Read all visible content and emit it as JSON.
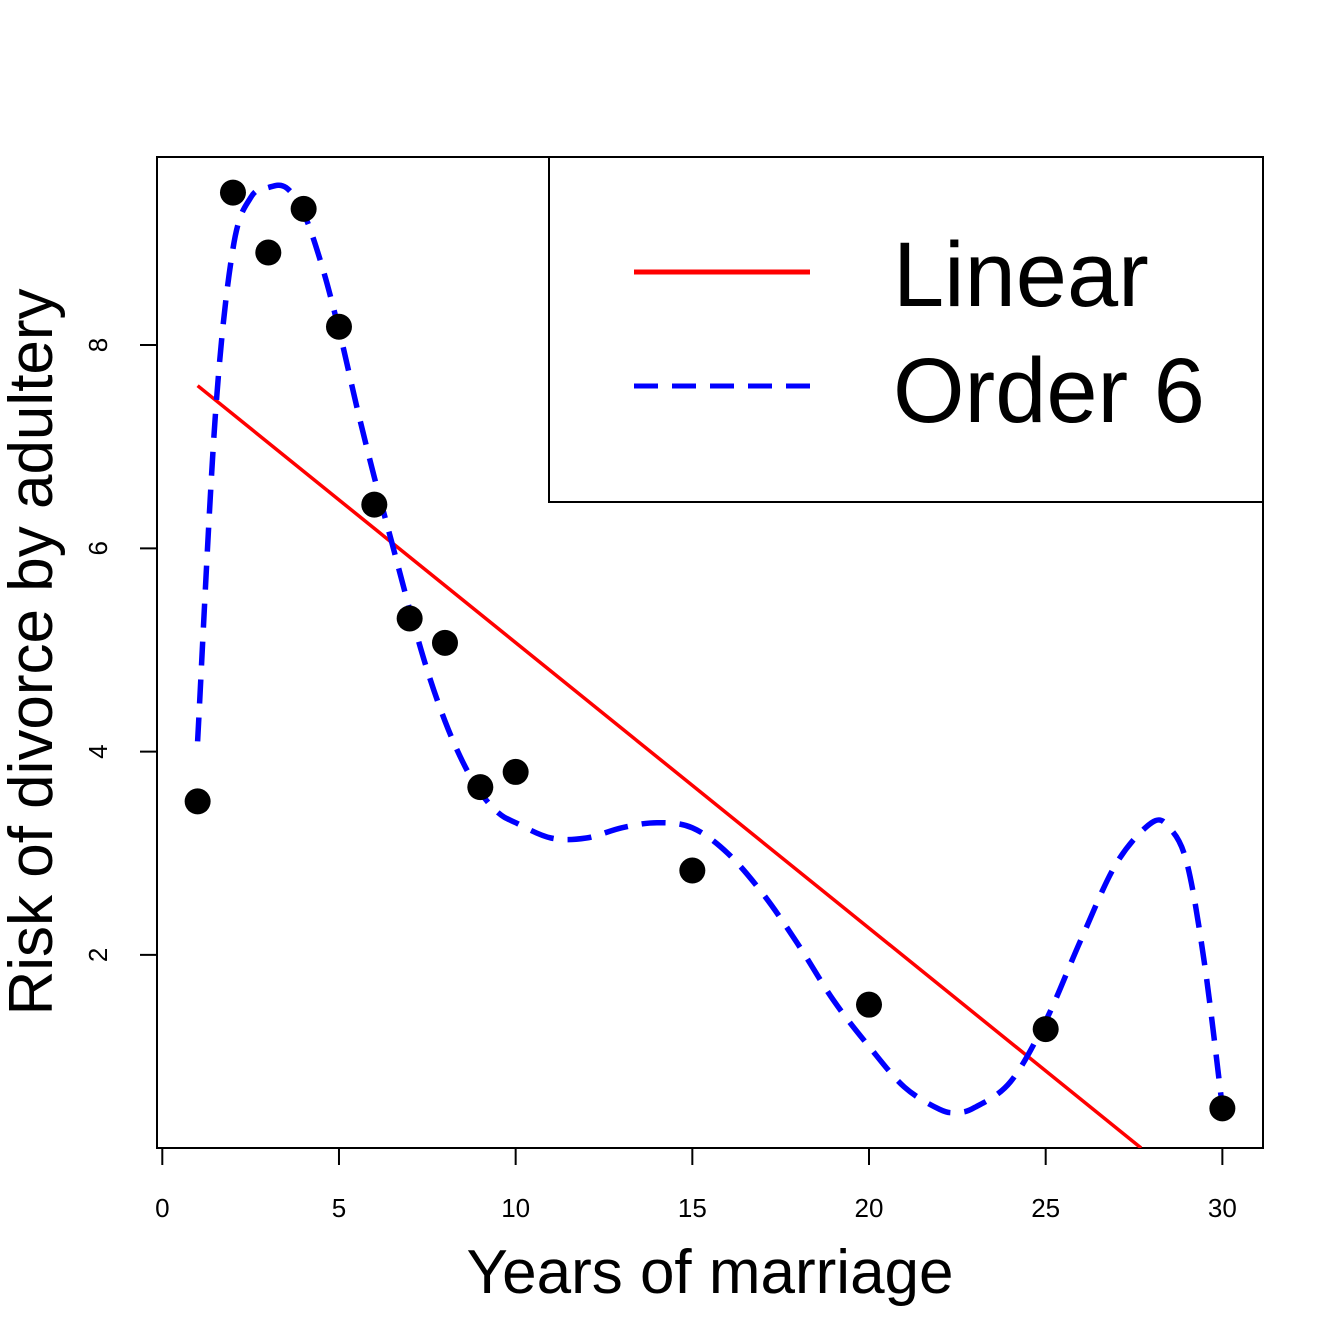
{
  "chart_data": {
    "type": "scatter",
    "title": "",
    "xlabel": "Years of marriage",
    "ylabel": "Risk of divorce by adultery",
    "xlim": [
      -0.15,
      31.15
    ],
    "ylim": [
      0.1,
      9.85
    ],
    "xticks": [
      0,
      5,
      10,
      15,
      20,
      25,
      30
    ],
    "yticks": [
      2,
      4,
      6,
      8
    ],
    "grid": false,
    "legend_position": "top-right",
    "colors": {
      "linear": "#ff0000",
      "order6": "#0000ff",
      "points": "#000000"
    },
    "points": {
      "x": [
        1,
        2,
        3,
        4,
        5,
        6,
        7,
        8,
        9,
        10,
        15,
        20,
        25,
        30
      ],
      "y": [
        3.51,
        9.5,
        8.91,
        9.34,
        8.18,
        6.43,
        5.31,
        5.07,
        3.65,
        3.8,
        2.83,
        1.51,
        1.27,
        0.49
      ]
    },
    "series": [
      {
        "name": "Linear",
        "style": "solid",
        "x": [
          1,
          27.7
        ],
        "y": [
          7.6,
          0.1
        ]
      },
      {
        "name": "Order 6",
        "style": "dashed",
        "x": [
          1,
          1.5,
          2,
          2.5,
          3,
          3.5,
          4,
          4.5,
          5,
          5.5,
          6,
          6.5,
          7,
          7.5,
          8,
          8.5,
          9,
          9.5,
          10,
          11,
          12,
          13,
          14,
          15,
          16,
          17,
          18,
          19,
          20,
          21,
          22,
          22.5,
          23,
          24,
          25,
          26,
          27,
          28,
          28.5,
          29,
          29.5,
          30
        ],
        "y": [
          4.1,
          7.3,
          8.95,
          9.45,
          9.55,
          9.55,
          9.3,
          8.8,
          8.15,
          7.4,
          6.7,
          6.05,
          5.4,
          4.8,
          4.3,
          3.9,
          3.6,
          3.4,
          3.3,
          3.15,
          3.15,
          3.25,
          3.3,
          3.25,
          3.0,
          2.6,
          2.1,
          1.55,
          1.1,
          0.7,
          0.48,
          0.45,
          0.5,
          0.75,
          1.35,
          2.15,
          2.9,
          3.3,
          3.25,
          2.9,
          1.9,
          0.5
        ]
      }
    ]
  }
}
